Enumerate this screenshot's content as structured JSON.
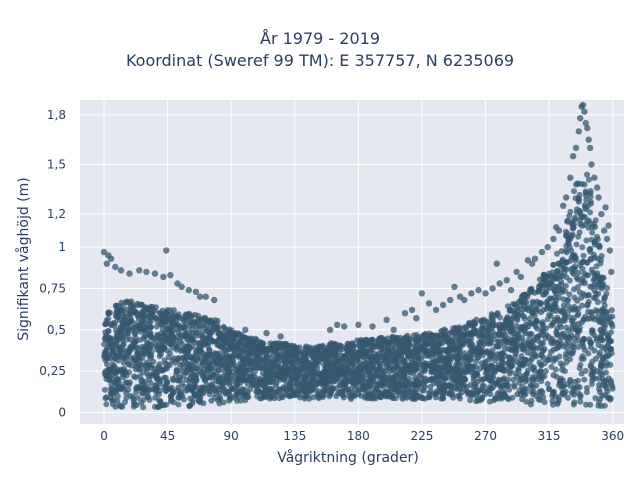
{
  "chart_data": {
    "type": "scatter",
    "title_lines": [
      "År 1979 - 2019",
      "Koordinat (Sweref 99 TM): E 357757, N 6235069"
    ],
    "xlabel": "Vågriktning (grader)",
    "ylabel": "Signifikant våghöjd (m)",
    "xlim": [
      -17,
      368
    ],
    "ylim": [
      -0.07,
      1.89
    ],
    "x_ticks": [
      0,
      45,
      90,
      135,
      180,
      225,
      270,
      315,
      360
    ],
    "x_tick_labels": [
      "0",
      "45",
      "90",
      "135",
      "180",
      "225",
      "270",
      "315",
      "360"
    ],
    "y_ticks": [
      0,
      0.25,
      0.5,
      0.75,
      1,
      1.2,
      1.5,
      1.8
    ],
    "y_tick_labels": [
      "0",
      "0,25",
      "0,5",
      "0,75",
      "1",
      "1,2",
      "1,5",
      "1,8"
    ],
    "grid": true,
    "marker_color": "#34586f",
    "plot_bg": "#e5e8f0",
    "envelope": {
      "direction_deg": [
        0,
        10,
        20,
        30,
        40,
        50,
        60,
        70,
        80,
        90,
        100,
        110,
        120,
        130,
        140,
        150,
        160,
        170,
        180,
        190,
        200,
        210,
        220,
        230,
        240,
        250,
        260,
        270,
        280,
        290,
        300,
        310,
        320,
        325,
        330,
        335,
        340,
        345,
        350,
        355,
        360
      ],
      "dense_max_height_m": [
        0.62,
        0.66,
        0.68,
        0.66,
        0.64,
        0.62,
        0.6,
        0.58,
        0.56,
        0.5,
        0.46,
        0.44,
        0.42,
        0.42,
        0.4,
        0.4,
        0.42,
        0.42,
        0.44,
        0.44,
        0.46,
        0.46,
        0.47,
        0.48,
        0.5,
        0.52,
        0.55,
        0.58,
        0.62,
        0.66,
        0.74,
        0.82,
        0.95,
        1.05,
        1.25,
        1.45,
        1.55,
        1.35,
        1.05,
        0.82,
        0.6
      ],
      "min_height_m": [
        0.03,
        0.03,
        0.03,
        0.03,
        0.03,
        0.03,
        0.03,
        0.04,
        0.05,
        0.06,
        0.07,
        0.08,
        0.08,
        0.08,
        0.08,
        0.08,
        0.08,
        0.08,
        0.08,
        0.08,
        0.08,
        0.08,
        0.08,
        0.08,
        0.08,
        0.07,
        0.07,
        0.06,
        0.06,
        0.05,
        0.05,
        0.04,
        0.03,
        0.03,
        0.03,
        0.03,
        0.03,
        0.03,
        0.03,
        0.03,
        0.03
      ]
    },
    "outliers": [
      {
        "x": 0,
        "y": 0.97
      },
      {
        "x": 3,
        "y": 0.95
      },
      {
        "x": 5,
        "y": 0.93
      },
      {
        "x": 2,
        "y": 0.9
      },
      {
        "x": 8,
        "y": 0.88
      },
      {
        "x": 12,
        "y": 0.86
      },
      {
        "x": 18,
        "y": 0.84
      },
      {
        "x": 25,
        "y": 0.86
      },
      {
        "x": 30,
        "y": 0.85
      },
      {
        "x": 36,
        "y": 0.84
      },
      {
        "x": 42,
        "y": 0.82
      },
      {
        "x": 44,
        "y": 0.98
      },
      {
        "x": 47,
        "y": 0.83
      },
      {
        "x": 52,
        "y": 0.78
      },
      {
        "x": 55,
        "y": 0.76
      },
      {
        "x": 60,
        "y": 0.74
      },
      {
        "x": 65,
        "y": 0.73
      },
      {
        "x": 68,
        "y": 0.7
      },
      {
        "x": 72,
        "y": 0.7
      },
      {
        "x": 78,
        "y": 0.68
      },
      {
        "x": 100,
        "y": 0.5
      },
      {
        "x": 115,
        "y": 0.48
      },
      {
        "x": 125,
        "y": 0.46
      },
      {
        "x": 160,
        "y": 0.5
      },
      {
        "x": 165,
        "y": 0.53
      },
      {
        "x": 170,
        "y": 0.52
      },
      {
        "x": 180,
        "y": 0.53
      },
      {
        "x": 190,
        "y": 0.52
      },
      {
        "x": 200,
        "y": 0.56
      },
      {
        "x": 205,
        "y": 0.5
      },
      {
        "x": 213,
        "y": 0.6
      },
      {
        "x": 218,
        "y": 0.62
      },
      {
        "x": 221,
        "y": 0.57
      },
      {
        "x": 225,
        "y": 0.72
      },
      {
        "x": 230,
        "y": 0.66
      },
      {
        "x": 235,
        "y": 0.62
      },
      {
        "x": 240,
        "y": 0.65
      },
      {
        "x": 245,
        "y": 0.68
      },
      {
        "x": 248,
        "y": 0.76
      },
      {
        "x": 252,
        "y": 0.7
      },
      {
        "x": 255,
        "y": 0.68
      },
      {
        "x": 260,
        "y": 0.72
      },
      {
        "x": 265,
        "y": 0.74
      },
      {
        "x": 270,
        "y": 0.72
      },
      {
        "x": 275,
        "y": 0.75
      },
      {
        "x": 278,
        "y": 0.9
      },
      {
        "x": 280,
        "y": 0.78
      },
      {
        "x": 285,
        "y": 0.8
      },
      {
        "x": 288,
        "y": 0.74
      },
      {
        "x": 292,
        "y": 0.85
      },
      {
        "x": 295,
        "y": 0.82
      },
      {
        "x": 300,
        "y": 0.92
      },
      {
        "x": 303,
        "y": 0.9
      },
      {
        "x": 305,
        "y": 0.93
      },
      {
        "x": 310,
        "y": 0.97
      },
      {
        "x": 314,
        "y": 1.0
      },
      {
        "x": 318,
        "y": 1.05
      },
      {
        "x": 320,
        "y": 1.12
      },
      {
        "x": 322,
        "y": 1.1
      },
      {
        "x": 325,
        "y": 1.25
      },
      {
        "x": 327,
        "y": 1.3
      },
      {
        "x": 330,
        "y": 1.42
      },
      {
        "x": 332,
        "y": 1.55
      },
      {
        "x": 334,
        "y": 1.6
      },
      {
        "x": 336,
        "y": 1.7
      },
      {
        "x": 337,
        "y": 1.78
      },
      {
        "x": 338,
        "y": 1.85
      },
      {
        "x": 339,
        "y": 1.86
      },
      {
        "x": 340,
        "y": 1.82
      },
      {
        "x": 341,
        "y": 1.75
      },
      {
        "x": 342,
        "y": 1.72
      },
      {
        "x": 343,
        "y": 1.65
      },
      {
        "x": 344,
        "y": 1.6
      },
      {
        "x": 345,
        "y": 1.5
      },
      {
        "x": 347,
        "y": 1.42
      },
      {
        "x": 350,
        "y": 1.3
      },
      {
        "x": 352,
        "y": 1.2
      },
      {
        "x": 354,
        "y": 1.1
      },
      {
        "x": 356,
        "y": 1.05
      },
      {
        "x": 358,
        "y": 0.98
      },
      {
        "x": 359,
        "y": 0.85
      },
      {
        "x": 357,
        "y": 1.13
      },
      {
        "x": 355,
        "y": 1.24
      },
      {
        "x": 349,
        "y": 1.36
      }
    ]
  }
}
